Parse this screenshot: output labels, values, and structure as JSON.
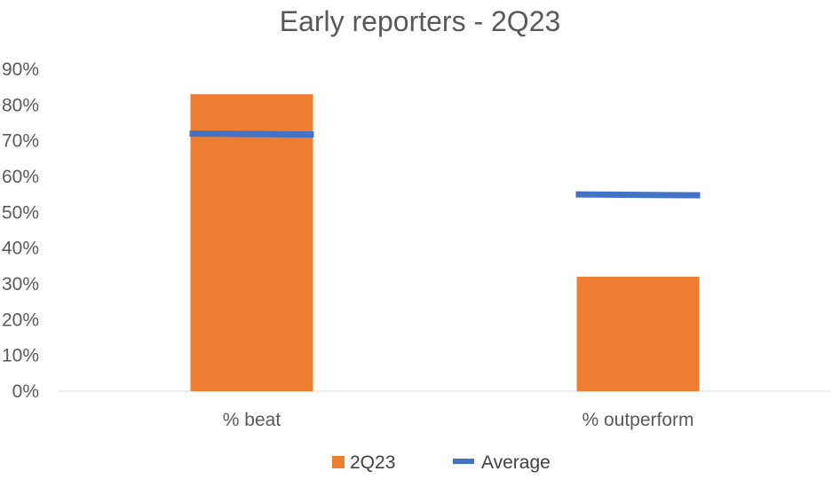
{
  "chart_data": {
    "type": "bar",
    "title": "Early reporters - 2Q23",
    "xlabel": "",
    "ylabel": "",
    "categories": [
      "% beat",
      "% outperform"
    ],
    "ylim": [
      0,
      0.9
    ],
    "ytick_values": [
      0,
      0.1,
      0.2,
      0.3,
      0.4,
      0.5,
      0.6,
      0.7,
      0.8,
      0.9
    ],
    "ytick_labels": [
      "0%",
      "10%",
      "20%",
      "30%",
      "40%",
      "50%",
      "60%",
      "70%",
      "80%",
      "90%"
    ],
    "grid": false,
    "legend_position": "bottom",
    "series": [
      {
        "name": "2Q23",
        "kind": "bar",
        "color": "#ED7D31",
        "values": [
          0.83,
          0.32
        ]
      },
      {
        "name": "Average",
        "kind": "line-marker",
        "color": "#4472C4",
        "values": [
          0.72,
          0.55
        ]
      }
    ]
  }
}
